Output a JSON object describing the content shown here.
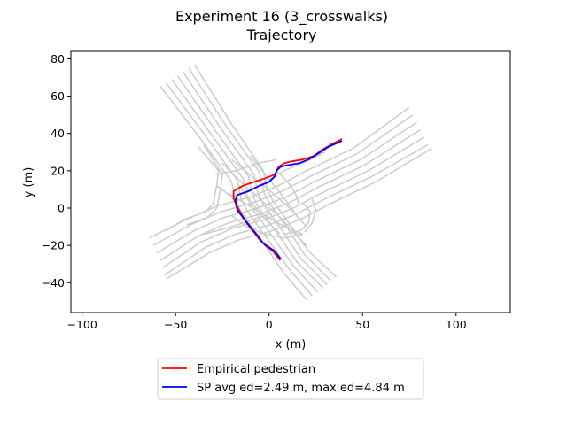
{
  "chart_data": {
    "type": "line",
    "title": "Experiment 16 (3_crosswalks)",
    "subtitle": "Trajectory",
    "xlabel": "x (m)",
    "ylabel": "y (m)",
    "xlim": [
      -106,
      129
    ],
    "ylim": [
      -56,
      84
    ],
    "xticks": [
      -100,
      -50,
      0,
      50,
      100
    ],
    "yticks": [
      -40,
      -20,
      0,
      20,
      40,
      60,
      80
    ],
    "grid": false,
    "legend_placement": "below",
    "background_paths": [
      {
        "color": "#cccccc",
        "points": [
          [
            -40,
            77
          ],
          [
            -20,
            45
          ],
          [
            -3,
            20
          ],
          [
            -1,
            10
          ],
          [
            2,
            4
          ],
          [
            12,
            -10
          ],
          [
            21,
            -23
          ],
          [
            36,
            -37
          ]
        ]
      },
      {
        "color": "#cccccc",
        "points": [
          [
            -43,
            75
          ],
          [
            -23,
            44
          ],
          [
            -5,
            19
          ],
          [
            -3,
            9
          ],
          [
            0,
            3
          ],
          [
            10,
            -11
          ],
          [
            19,
            -25
          ],
          [
            33,
            -39
          ]
        ]
      },
      {
        "color": "#cccccc",
        "points": [
          [
            -46,
            73
          ],
          [
            -26,
            43
          ],
          [
            -8,
            18
          ],
          [
            -6,
            8
          ],
          [
            -3,
            2
          ],
          [
            7,
            -12
          ],
          [
            17,
            -27
          ],
          [
            31,
            -41
          ]
        ]
      },
      {
        "color": "#cccccc",
        "points": [
          [
            -49,
            71
          ],
          [
            -29,
            42
          ],
          [
            -11,
            17
          ],
          [
            -9,
            7
          ],
          [
            -6,
            1
          ],
          [
            4,
            -13
          ],
          [
            15,
            -29
          ],
          [
            29,
            -43
          ]
        ]
      },
      {
        "color": "#cccccc",
        "points": [
          [
            -52,
            69
          ],
          [
            -32,
            41
          ],
          [
            -14,
            16
          ],
          [
            -12,
            6
          ],
          [
            -9,
            0
          ],
          [
            1,
            -14
          ],
          [
            13,
            -31
          ],
          [
            26,
            -45
          ]
        ]
      },
      {
        "color": "#cccccc",
        "points": [
          [
            -55,
            67
          ],
          [
            -35,
            40
          ],
          [
            -17,
            15
          ],
          [
            -15,
            5
          ],
          [
            -12,
            -1
          ],
          [
            -2,
            -15
          ],
          [
            11,
            -33
          ],
          [
            23,
            -47
          ]
        ]
      },
      {
        "color": "#cccccc",
        "points": [
          [
            -58,
            65
          ],
          [
            -38,
            39
          ],
          [
            -20,
            14
          ],
          [
            -18,
            4
          ],
          [
            -15,
            -2
          ],
          [
            -5,
            -16
          ],
          [
            8,
            -35
          ],
          [
            20,
            -49
          ]
        ]
      },
      {
        "color": "#cccccc",
        "points": [
          [
            -64,
            -16
          ],
          [
            -44,
            -6
          ],
          [
            -28,
            1
          ],
          [
            -10,
            6
          ],
          [
            5,
            12
          ],
          [
            20,
            20
          ],
          [
            45,
            32
          ],
          [
            75,
            54
          ]
        ]
      },
      {
        "color": "#cccccc",
        "points": [
          [
            -62,
            -20
          ],
          [
            -42,
            -9
          ],
          [
            -26,
            -2
          ],
          [
            -8,
            3
          ],
          [
            7,
            9
          ],
          [
            22,
            17
          ],
          [
            47,
            29
          ],
          [
            77,
            50
          ]
        ]
      },
      {
        "color": "#cccccc",
        "points": [
          [
            -60,
            -24
          ],
          [
            -40,
            -12
          ],
          [
            -24,
            -5
          ],
          [
            -6,
            0
          ],
          [
            9,
            6
          ],
          [
            24,
            14
          ],
          [
            49,
            26
          ],
          [
            79,
            46
          ]
        ]
      },
      {
        "color": "#cccccc",
        "points": [
          [
            -58,
            -28
          ],
          [
            -38,
            -15
          ],
          [
            -22,
            -8
          ],
          [
            -4,
            -3
          ],
          [
            11,
            3
          ],
          [
            26,
            11
          ],
          [
            51,
            23
          ],
          [
            81,
            42
          ]
        ]
      },
      {
        "color": "#cccccc",
        "points": [
          [
            -57,
            -32
          ],
          [
            -36,
            -18
          ],
          [
            -20,
            -11
          ],
          [
            -2,
            -6
          ],
          [
            13,
            0
          ],
          [
            28,
            8
          ],
          [
            53,
            20
          ],
          [
            83,
            38
          ]
        ]
      },
      {
        "color": "#cccccc",
        "points": [
          [
            -56,
            -36
          ],
          [
            -34,
            -21
          ],
          [
            -18,
            -14
          ],
          [
            0,
            -9
          ],
          [
            15,
            -3
          ],
          [
            30,
            5
          ],
          [
            55,
            17
          ],
          [
            85,
            34
          ]
        ]
      },
      {
        "color": "#cccccc",
        "points": [
          [
            -55,
            -38
          ],
          [
            -32,
            -24
          ],
          [
            -16,
            -17
          ],
          [
            2,
            -12
          ],
          [
            17,
            -6
          ],
          [
            32,
            2
          ],
          [
            57,
            14
          ],
          [
            87,
            32
          ]
        ]
      },
      {
        "color": "#cccccc",
        "points": [
          [
            -38,
            33
          ],
          [
            -27,
            20
          ],
          [
            -28,
            12
          ],
          [
            -30,
            2
          ],
          [
            -34,
            -2
          ],
          [
            -45,
            -6
          ],
          [
            -55,
            -12
          ]
        ]
      },
      {
        "color": "#cccccc",
        "points": [
          [
            -35,
            34
          ],
          [
            -25,
            18
          ],
          [
            -26,
            10
          ],
          [
            -28,
            0
          ],
          [
            -33,
            -5
          ],
          [
            -44,
            -9
          ]
        ]
      },
      {
        "color": "#cccccc",
        "points": [
          [
            -28,
            12
          ],
          [
            -20,
            6
          ],
          [
            -10,
            10
          ],
          [
            0,
            15
          ],
          [
            8,
            20
          ],
          [
            20,
            25
          ],
          [
            30,
            30
          ]
        ]
      },
      {
        "color": "#cccccc",
        "points": [
          [
            -22,
            8
          ],
          [
            -12,
            2
          ],
          [
            -2,
            -4
          ],
          [
            8,
            -10
          ],
          [
            18,
            -14
          ]
        ]
      },
      {
        "color": "#cccccc",
        "points": [
          [
            -25,
            24
          ],
          [
            -14,
            13
          ],
          [
            -4,
            4
          ],
          [
            6,
            -5
          ],
          [
            14,
            -14
          ],
          [
            20,
            -20
          ]
        ]
      },
      {
        "color": "#cccccc",
        "points": [
          [
            -20,
            26
          ],
          [
            -8,
            16
          ],
          [
            2,
            8
          ],
          [
            12,
            -1
          ],
          [
            20,
            -10
          ]
        ]
      },
      {
        "color": "#cccccc",
        "points": [
          [
            18,
            3
          ],
          [
            22,
            -2
          ],
          [
            21,
            -8
          ],
          [
            17,
            -12
          ],
          [
            8,
            -14
          ]
        ]
      },
      {
        "color": "#cccccc",
        "points": [
          [
            23,
            5
          ],
          [
            25,
            -1
          ],
          [
            23,
            -8
          ],
          [
            19,
            -13
          ]
        ]
      },
      {
        "color": "#cccccc",
        "points": [
          [
            -10,
            28
          ],
          [
            -2,
            18
          ],
          [
            6,
            8
          ],
          [
            12,
            0
          ],
          [
            16,
            -6
          ]
        ]
      },
      {
        "color": "#cccccc",
        "points": [
          [
            4,
            20
          ],
          [
            10,
            14
          ],
          [
            14,
            8
          ],
          [
            16,
            2
          ]
        ]
      },
      {
        "color": "#cccccc",
        "points": [
          [
            -20,
            -4
          ],
          [
            -12,
            -10
          ],
          [
            -2,
            -14
          ],
          [
            8,
            -16
          ],
          [
            18,
            -14
          ]
        ]
      },
      {
        "color": "#cccccc",
        "points": [
          [
            -16,
            12
          ],
          [
            -10,
            4
          ],
          [
            -4,
            -4
          ],
          [
            2,
            -10
          ],
          [
            6,
            -14
          ]
        ]
      },
      {
        "color": "#cccccc",
        "points": [
          [
            -30,
            18
          ],
          [
            -18,
            20
          ],
          [
            -6,
            24
          ],
          [
            4,
            26
          ]
        ]
      },
      {
        "color": "#cccccc",
        "points": [
          [
            -35,
            -14
          ],
          [
            -20,
            -10
          ],
          [
            -8,
            -6
          ],
          [
            4,
            -2
          ]
        ]
      }
    ],
    "series": [
      {
        "name": "Empirical pedestrian",
        "color": "#ff0000",
        "points": [
          [
            39,
            37
          ],
          [
            33,
            34
          ],
          [
            28,
            31
          ],
          [
            24,
            28
          ],
          [
            18,
            26
          ],
          [
            12,
            25
          ],
          [
            8,
            24
          ],
          [
            5,
            22
          ],
          [
            3,
            18
          ],
          [
            -2,
            16
          ],
          [
            -8,
            14
          ],
          [
            -14,
            12
          ],
          [
            -19,
            9
          ],
          [
            -19,
            5
          ],
          [
            -17,
            1
          ],
          [
            -15,
            -3
          ],
          [
            -12,
            -8
          ],
          [
            -8,
            -13
          ],
          [
            -5,
            -17
          ],
          [
            -2,
            -20
          ],
          [
            2,
            -23
          ],
          [
            6,
            -28
          ]
        ]
      },
      {
        "name": "SP avg ed=2.49 m, max ed=4.84 m",
        "color": "#0000ff",
        "points": [
          [
            39,
            36
          ],
          [
            32,
            33
          ],
          [
            26,
            29
          ],
          [
            21,
            26
          ],
          [
            16,
            24
          ],
          [
            10,
            23
          ],
          [
            6,
            22
          ],
          [
            4,
            20
          ],
          [
            3,
            17
          ],
          [
            0,
            14
          ],
          [
            -5,
            12
          ],
          [
            -11,
            9
          ],
          [
            -17,
            7
          ],
          [
            -18,
            4
          ],
          [
            -17,
            -1
          ],
          [
            -14,
            -5
          ],
          [
            -10,
            -10
          ],
          [
            -6,
            -15
          ],
          [
            -3,
            -19
          ],
          [
            0,
            -21
          ],
          [
            3,
            -23
          ],
          [
            6,
            -27
          ]
        ]
      }
    ]
  }
}
